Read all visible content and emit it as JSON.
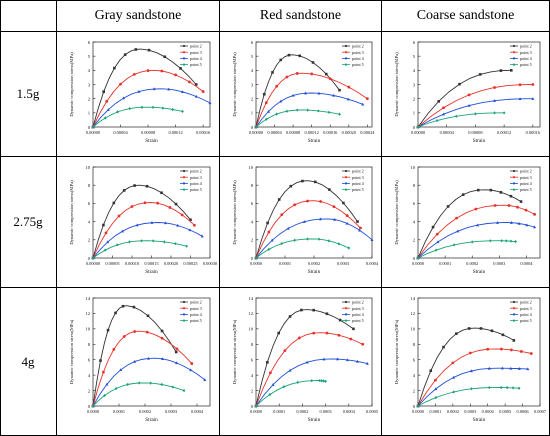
{
  "table": {
    "columns": [
      "Gray sandstone",
      "Red sandstone",
      "Coarse sandstone"
    ],
    "rows": [
      "1.5g",
      "2.75g",
      "4g"
    ]
  },
  "panel_text": {
    "ylabel": "Dynamic compression stress(MPa)",
    "xlabel": "Strain"
  },
  "colors": {
    "point2": "#333333",
    "point3": "#e8322a",
    "point4": "#1f4ed8",
    "point5": "#1aa37a"
  },
  "chart_data": [
    {
      "type": "line",
      "row": "1.5g",
      "column": "Gray sandstone",
      "xlabel": "Strain",
      "ylabel": "Dynamic compression stress(MPa)",
      "xlim": [
        0,
        0.00017
      ],
      "ylim": [
        0,
        6
      ],
      "xticks": [
        "0.00000",
        "0.00004",
        "0.00008",
        "0.00012",
        "0.00016"
      ],
      "yticks": [
        "0",
        "1",
        "2",
        "3",
        "4",
        "5",
        "6"
      ],
      "series": [
        {
          "name": "point 2",
          "peak_x": 7e-05,
          "peak_y": 5.5,
          "end_x": 0.00015,
          "end_y": 3.0
        },
        {
          "name": "point 3",
          "peak_x": 9e-05,
          "peak_y": 4.0,
          "end_x": 0.00016,
          "end_y": 2.5
        },
        {
          "name": "point 4",
          "peak_x": 0.0001,
          "peak_y": 2.7,
          "end_x": 0.00017,
          "end_y": 1.7
        },
        {
          "name": "point 5",
          "peak_x": 8e-05,
          "peak_y": 1.4,
          "end_x": 0.00013,
          "end_y": 1.1
        }
      ]
    },
    {
      "type": "line",
      "row": "1.5g",
      "column": "Red sandstone",
      "xlabel": "Strain",
      "ylabel": "Dynamic compression stress(MPa)",
      "xlim": [
        0,
        0.00025
      ],
      "ylim": [
        0,
        6
      ],
      "xticks": [
        "0.00000",
        "0.00004",
        "0.00008",
        "0.00012",
        "0.00016",
        "0.00020",
        "0.00024"
      ],
      "yticks": [
        "0",
        "1",
        "2",
        "3",
        "4",
        "5",
        "6"
      ],
      "series": [
        {
          "name": "point 2",
          "peak_x": 8e-05,
          "peak_y": 5.1,
          "end_x": 0.00018,
          "end_y": 2.6
        },
        {
          "name": "point 3",
          "peak_x": 0.0001,
          "peak_y": 3.8,
          "end_x": 0.00024,
          "end_y": 2.0
        },
        {
          "name": "point 4",
          "peak_x": 0.00012,
          "peak_y": 2.4,
          "end_x": 0.00023,
          "end_y": 1.6
        },
        {
          "name": "point 5",
          "peak_x": 0.0001,
          "peak_y": 1.2,
          "end_x": 0.00018,
          "end_y": 0.9
        }
      ]
    },
    {
      "type": "line",
      "row": "1.5g",
      "column": "Coarse sandstone",
      "xlabel": "Strain",
      "ylabel": "Dynamic compression stress(MPa)",
      "xlim": [
        0,
        0.00017
      ],
      "ylim": [
        0,
        6
      ],
      "xticks": [
        "0.00000",
        "0.00004",
        "0.00008",
        "0.00012",
        "0.00016"
      ],
      "yticks": [
        "0",
        "1",
        "2",
        "3",
        "4",
        "5",
        "6"
      ],
      "series": [
        {
          "name": "point 2",
          "peak_x": 0.00013,
          "peak_y": 4.0,
          "end_x": 0.00013,
          "end_y": 4.0
        },
        {
          "name": "point 3",
          "peak_x": 0.00016,
          "peak_y": 3.0,
          "end_x": 0.00016,
          "end_y": 3.0
        },
        {
          "name": "point 4",
          "peak_x": 0.00016,
          "peak_y": 2.0,
          "end_x": 0.00016,
          "end_y": 2.0
        },
        {
          "name": "point 5",
          "peak_x": 0.00012,
          "peak_y": 1.0,
          "end_x": 0.00012,
          "end_y": 1.0
        }
      ]
    },
    {
      "type": "line",
      "row": "2.75g",
      "column": "Gray sandstone",
      "xlabel": "Strain",
      "ylabel": "Dynamic compression stress(MPa)",
      "xlim": [
        0,
        0.0003
      ],
      "ylim": [
        0,
        10
      ],
      "xticks": [
        "0.00000",
        "0.00005",
        "0.00010",
        "0.00015",
        "0.00020",
        "0.00025",
        "0.00030"
      ],
      "yticks": [
        "0",
        "2",
        "4",
        "6",
        "8",
        "10"
      ],
      "series": [
        {
          "name": "point 2",
          "peak_x": 0.00012,
          "peak_y": 8.0,
          "end_x": 0.00025,
          "end_y": 4.2
        },
        {
          "name": "point 3",
          "peak_x": 0.00015,
          "peak_y": 6.1,
          "end_x": 0.00026,
          "end_y": 3.6
        },
        {
          "name": "point 4",
          "peak_x": 0.00017,
          "peak_y": 3.9,
          "end_x": 0.00028,
          "end_y": 2.4
        },
        {
          "name": "point 5",
          "peak_x": 0.00014,
          "peak_y": 1.9,
          "end_x": 0.00024,
          "end_y": 1.3
        }
      ]
    },
    {
      "type": "line",
      "row": "2.75g",
      "column": "Red sandstone",
      "xlabel": "Strain",
      "ylabel": "Dynamic compression stress(MPa)",
      "xlim": [
        0,
        0.0004
      ],
      "ylim": [
        0,
        10
      ],
      "xticks": [
        "0.0000",
        "0.0001",
        "0.0002",
        "0.0003",
        "0.0004"
      ],
      "yticks": [
        "0",
        "2",
        "4",
        "6",
        "8",
        "10"
      ],
      "series": [
        {
          "name": "point 2",
          "peak_x": 0.00018,
          "peak_y": 8.5,
          "end_x": 0.00035,
          "end_y": 4.0
        },
        {
          "name": "point 3",
          "peak_x": 0.0002,
          "peak_y": 6.3,
          "end_x": 0.00036,
          "end_y": 3.3
        },
        {
          "name": "point 4",
          "peak_x": 0.00025,
          "peak_y": 4.3,
          "end_x": 0.0004,
          "end_y": 2.0
        },
        {
          "name": "point 5",
          "peak_x": 0.0002,
          "peak_y": 2.1,
          "end_x": 0.00032,
          "end_y": 1.1
        }
      ]
    },
    {
      "type": "line",
      "row": "2.75g",
      "column": "Coarse sandstone",
      "xlabel": "Strain",
      "ylabel": "Dynamic compression stress(MPa)",
      "xlim": [
        0,
        0.00045
      ],
      "ylim": [
        0,
        10
      ],
      "xticks": [
        "0.0000",
        "0.0001",
        "0.0002",
        "0.0003",
        "0.0004"
      ],
      "yticks": [
        "0",
        "2",
        "4",
        "6",
        "8",
        "10"
      ],
      "series": [
        {
          "name": "point 2",
          "peak_x": 0.00025,
          "peak_y": 7.5,
          "end_x": 0.00038,
          "end_y": 6.2
        },
        {
          "name": "point 3",
          "peak_x": 0.00032,
          "peak_y": 5.8,
          "end_x": 0.00043,
          "end_y": 4.8
        },
        {
          "name": "point 4",
          "peak_x": 0.00033,
          "peak_y": 3.9,
          "end_x": 0.00043,
          "end_y": 3.4
        },
        {
          "name": "point 5",
          "peak_x": 0.0003,
          "peak_y": 1.9,
          "end_x": 0.00036,
          "end_y": 1.8
        }
      ]
    },
    {
      "type": "line",
      "row": "4g",
      "column": "Gray sandstone",
      "xlabel": "Strain",
      "ylabel": "Dynamic compression stress(MPa)",
      "xlim": [
        0,
        0.00045
      ],
      "ylim": [
        0,
        14
      ],
      "xticks": [
        "0.0000",
        "0.0001",
        "0.0002",
        "0.0003",
        "0.0004"
      ],
      "yticks": [
        "0",
        "2",
        "4",
        "6",
        "8",
        "10",
        "12",
        "14"
      ],
      "series": [
        {
          "name": "point 2",
          "peak_x": 0.00013,
          "peak_y": 13.0,
          "end_x": 0.00032,
          "end_y": 7.0
        },
        {
          "name": "point 3",
          "peak_x": 0.00018,
          "peak_y": 9.7,
          "end_x": 0.00038,
          "end_y": 5.5
        },
        {
          "name": "point 4",
          "peak_x": 0.00024,
          "peak_y": 6.2,
          "end_x": 0.00043,
          "end_y": 3.4
        },
        {
          "name": "point 5",
          "peak_x": 0.0002,
          "peak_y": 3.0,
          "end_x": 0.00035,
          "end_y": 2.0
        }
      ]
    },
    {
      "type": "line",
      "row": "4g",
      "column": "Red sandstone",
      "xlabel": "Strain",
      "ylabel": "Dynamic compression stress(MPa)",
      "xlim": [
        0,
        0.0005
      ],
      "ylim": [
        0,
        14
      ],
      "xticks": [
        "0.0000",
        "0.0001",
        "0.0002",
        "0.0003",
        "0.0004",
        "0.0005"
      ],
      "yticks": [
        "0",
        "2",
        "4",
        "6",
        "8",
        "10",
        "12",
        "14"
      ],
      "series": [
        {
          "name": "point 2",
          "peak_x": 0.00022,
          "peak_y": 12.5,
          "end_x": 0.00042,
          "end_y": 10.0
        },
        {
          "name": "point 3",
          "peak_x": 0.00028,
          "peak_y": 9.5,
          "end_x": 0.00046,
          "end_y": 8.0
        },
        {
          "name": "point 4",
          "peak_x": 0.00033,
          "peak_y": 6.1,
          "end_x": 0.00048,
          "end_y": 5.5
        },
        {
          "name": "point 5",
          "peak_x": 0.00027,
          "peak_y": 3.3,
          "end_x": 0.0003,
          "end_y": 3.2
        }
      ]
    },
    {
      "type": "line",
      "row": "4g",
      "column": "Coarse sandstone",
      "xlabel": "Strain",
      "ylabel": "Dynamic compression stress(MPa)",
      "xlim": [
        0,
        0.0007
      ],
      "ylim": [
        0,
        14
      ],
      "xticks": [
        "0.0000",
        "0.0001",
        "0.0002",
        "0.0003",
        "0.0004",
        "0.0005",
        "0.0006",
        "0.0007"
      ],
      "yticks": [
        "0",
        "2",
        "4",
        "6",
        "8",
        "10",
        "12",
        "14"
      ],
      "series": [
        {
          "name": "point 2",
          "peak_x": 0.00033,
          "peak_y": 10.1,
          "end_x": 0.00055,
          "end_y": 8.5
        },
        {
          "name": "point 3",
          "peak_x": 0.00045,
          "peak_y": 7.4,
          "end_x": 0.00065,
          "end_y": 6.8
        },
        {
          "name": "point 4",
          "peak_x": 0.00046,
          "peak_y": 4.9,
          "end_x": 0.00063,
          "end_y": 4.8
        },
        {
          "name": "point 5",
          "peak_x": 0.00046,
          "peak_y": 2.4,
          "end_x": 0.00058,
          "end_y": 2.3
        }
      ]
    }
  ]
}
